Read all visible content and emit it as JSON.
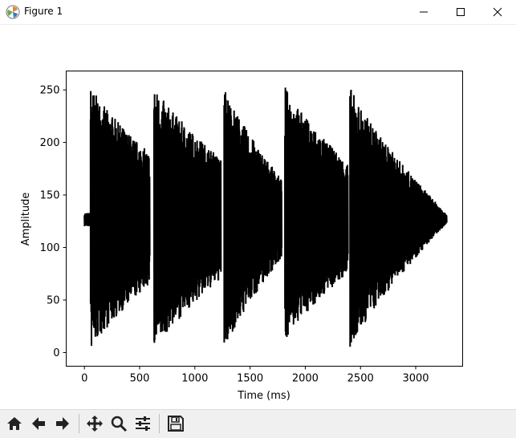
{
  "window": {
    "title": "Figure 1"
  },
  "colors": {
    "line": "#000000",
    "background": "#ffffff"
  },
  "toolbar": {
    "buttons": [
      {
        "name": "home-button",
        "icon": "home-icon"
      },
      {
        "name": "back-button",
        "icon": "arrow-left-icon"
      },
      {
        "name": "forward-button",
        "icon": "arrow-right-icon"
      },
      {
        "name": "pan-button",
        "icon": "move-icon"
      },
      {
        "name": "zoom-button",
        "icon": "magnifier-icon"
      },
      {
        "name": "configure-subplots-button",
        "icon": "sliders-icon"
      },
      {
        "name": "save-button",
        "icon": "floppy-disk-icon"
      }
    ]
  },
  "chart_data": {
    "type": "line",
    "title": "",
    "xlabel": "Time (ms)",
    "ylabel": "Amplitude",
    "xlim": [
      -165,
      3425
    ],
    "ylim": [
      -13,
      268
    ],
    "xticks": [
      0,
      500,
      1000,
      1500,
      2000,
      2500,
      3000
    ],
    "yticks": [
      0,
      50,
      100,
      150,
      200,
      250
    ],
    "grid": false,
    "series": [
      {
        "color": "#000000",
        "segments": [
          {
            "start": 0,
            "end": 55,
            "peak_min": 120,
            "peak_max": 133,
            "decay_to_min": 120,
            "decay_to_max": 133
          },
          {
            "start": 55,
            "end": 590,
            "peak_min": 0,
            "peak_max": 255,
            "decay_to_min": 65,
            "decay_to_max": 190
          },
          {
            "start": 630,
            "end": 1235,
            "peak_min": 0,
            "peak_max": 255,
            "decay_to_min": 70,
            "decay_to_max": 185
          },
          {
            "start": 1265,
            "end": 1785,
            "peak_min": 0,
            "peak_max": 255,
            "decay_to_min": 90,
            "decay_to_max": 165
          },
          {
            "start": 1815,
            "end": 2385,
            "peak_min": 10,
            "peak_max": 255,
            "decay_to_min": 75,
            "decay_to_max": 180
          },
          {
            "start": 2405,
            "end": 3280,
            "peak_min": 0,
            "peak_max": 255,
            "decay_to_min": 123,
            "decay_to_max": 132
          }
        ]
      }
    ]
  }
}
